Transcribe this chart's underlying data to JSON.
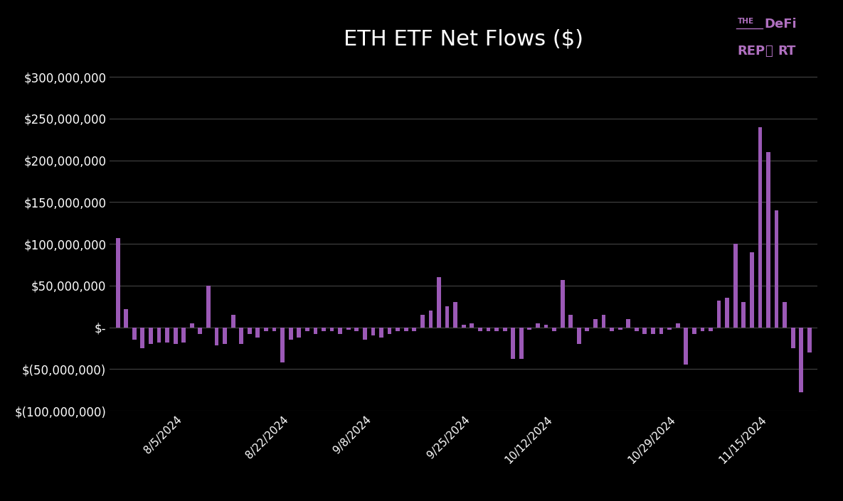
{
  "title": "ETH ETF Net Flows ($)",
  "background_color": "#000000",
  "bar_color": "#9B59B6",
  "text_color": "#ffffff",
  "title_color": "#ffffff",
  "grid_color": "#444444",
  "ylim": [
    -100000000,
    320000000
  ],
  "yticks": [
    -100000000,
    -50000000,
    0,
    50000000,
    100000000,
    150000000,
    200000000,
    250000000,
    300000000
  ],
  "values": [
    106600000,
    22000000,
    -15000000,
    -25000000,
    -20000000,
    -18000000,
    -18000000,
    -20000000,
    -18000000,
    5000000,
    -8000000,
    50000000,
    -22000000,
    -20000000,
    15000000,
    -20000000,
    -8000000,
    -12000000,
    -5000000,
    -5000000,
    -42000000,
    -15000000,
    -12000000,
    -5000000,
    -8000000,
    -5000000,
    -5000000,
    -8000000,
    -3000000,
    -5000000,
    -15000000,
    -10000000,
    -12000000,
    -8000000,
    -5000000,
    -5000000,
    -5000000,
    15000000,
    20000000,
    60000000,
    25000000,
    30000000,
    3000000,
    5000000,
    -5000000,
    -5000000,
    -5000000,
    -5000000,
    -38000000,
    -38000000,
    -3000000,
    5000000,
    3000000,
    -5000000,
    57000000,
    15000000,
    -20000000,
    -5000000,
    10000000,
    15000000,
    -5000000,
    -3000000,
    10000000,
    -5000000,
    -8000000,
    -8000000,
    -8000000,
    -3000000,
    5000000,
    -45000000,
    -8000000,
    -5000000,
    -5000000,
    32000000,
    35000000,
    100000000,
    30000000,
    90000000,
    240000000,
    210000000,
    140000000,
    30000000,
    -25000000,
    -78000000,
    -30000000
  ],
  "xtick_labels": [
    "8/5/2024",
    "8/22/2024",
    "9/8/2024",
    "9/25/2024",
    "10/12/2024",
    "10/29/2024",
    "11/15/2024"
  ],
  "xtick_positions": [
    8,
    21,
    31,
    43,
    53,
    68,
    79
  ]
}
